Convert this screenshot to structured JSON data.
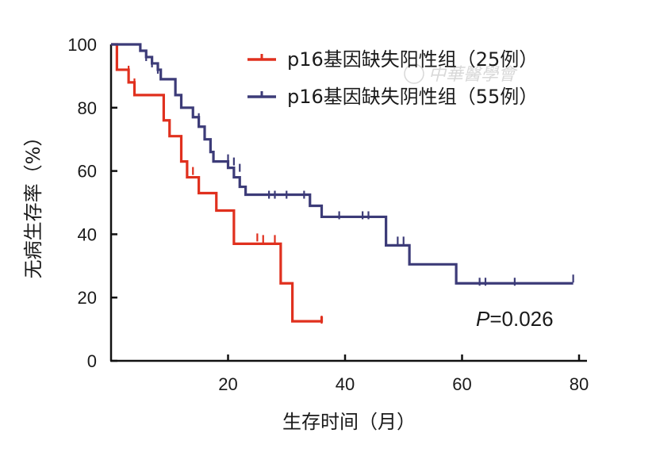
{
  "chart_data": {
    "type": "line",
    "subtype": "kaplan-meier",
    "xlabel": "生存时间（月）",
    "ylabel": "无病生存率（%）",
    "xlim": [
      0,
      80
    ],
    "ylim": [
      0,
      100
    ],
    "xticks": [
      "20",
      "40",
      "60",
      "80"
    ],
    "yticks": [
      "0",
      "20",
      "40",
      "60",
      "80",
      "100"
    ],
    "grid": false,
    "legend_position": "top-right",
    "annotation": {
      "prefix": "P",
      "text": "=0.026"
    },
    "watermark": "中華醫學會",
    "series": [
      {
        "name": "p16基因缺失阳性组（25例）",
        "color": "#e0301e",
        "steps": [
          [
            0,
            100
          ],
          [
            1,
            92
          ],
          [
            3,
            88
          ],
          [
            4,
            84
          ],
          [
            9,
            76
          ],
          [
            10,
            71
          ],
          [
            12,
            63
          ],
          [
            13,
            58
          ],
          [
            15,
            53
          ],
          [
            18,
            47.5
          ],
          [
            21,
            37
          ],
          [
            29,
            24.5
          ],
          [
            31,
            12.5
          ],
          [
            36,
            14
          ]
        ],
        "censored": [
          [
            3,
            92
          ],
          [
            4,
            88
          ],
          [
            13,
            61
          ],
          [
            14,
            60
          ],
          [
            25,
            39
          ],
          [
            26,
            38.5
          ],
          [
            28,
            38.5
          ],
          [
            36,
            13
          ]
        ]
      },
      {
        "name": "p16基因缺失阴性组（55例）",
        "color": "#3c3b78",
        "steps": [
          [
            0,
            100
          ],
          [
            5,
            98
          ],
          [
            6,
            96
          ],
          [
            7,
            94
          ],
          [
            8,
            92
          ],
          [
            8.5,
            89
          ],
          [
            11,
            84
          ],
          [
            12,
            80
          ],
          [
            14,
            77
          ],
          [
            15,
            74
          ],
          [
            16,
            70
          ],
          [
            17,
            66
          ],
          [
            17.5,
            63
          ],
          [
            20,
            61
          ],
          [
            21,
            58
          ],
          [
            22,
            55
          ],
          [
            23,
            52.5
          ],
          [
            34,
            49
          ],
          [
            36,
            45.5
          ],
          [
            47,
            36.5
          ],
          [
            51,
            30.5
          ],
          [
            59,
            24.5
          ],
          [
            79,
            24.5
          ]
        ],
        "censored": [
          [
            6,
            96
          ],
          [
            7,
            94
          ],
          [
            8,
            92
          ],
          [
            15,
            77
          ],
          [
            20,
            64
          ],
          [
            21,
            63
          ],
          [
            22,
            61
          ],
          [
            27,
            52.5
          ],
          [
            28,
            52.5
          ],
          [
            30,
            52.5
          ],
          [
            33,
            52.5
          ],
          [
            39,
            46
          ],
          [
            43,
            46
          ],
          [
            44,
            46
          ],
          [
            49,
            38
          ],
          [
            50,
            38
          ],
          [
            63,
            25
          ],
          [
            64,
            25
          ],
          [
            69,
            25
          ],
          [
            79,
            26
          ]
        ]
      }
    ]
  }
}
